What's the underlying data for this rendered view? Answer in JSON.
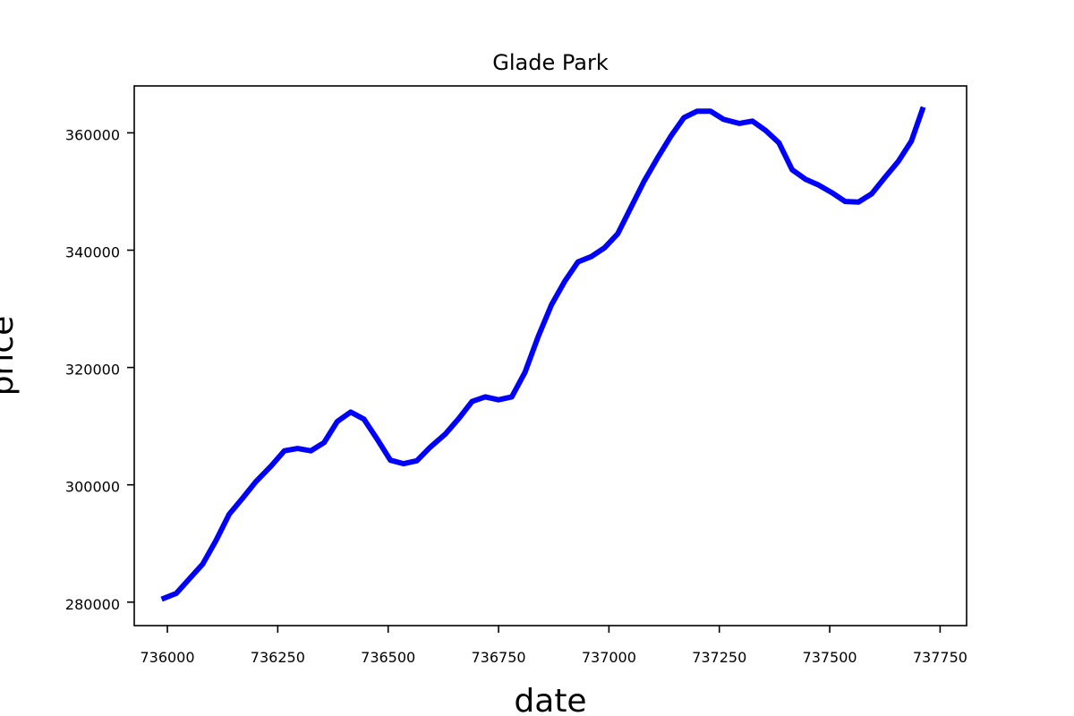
{
  "chart_data": {
    "type": "line",
    "title": "Glade Park",
    "xlabel": "date",
    "ylabel": "price",
    "xlim": [
      735925,
      737810
    ],
    "ylim": [
      276000,
      368000
    ],
    "x_ticks": [
      736000,
      736250,
      736500,
      736750,
      737000,
      737250,
      737500,
      737750
    ],
    "x_tick_labels": [
      "736000",
      "736250",
      "736500",
      "736750",
      "737000",
      "737250",
      "737500",
      "737750"
    ],
    "y_ticks": [
      280000,
      300000,
      320000,
      340000,
      360000
    ],
    "y_tick_labels": [
      "280000",
      "300000",
      "320000",
      "340000",
      "360000"
    ],
    "grid": false,
    "series": [
      {
        "color": "#0000ff",
        "x": [
          735987,
          736020,
          736050,
          736080,
          736110,
          736140,
          736170,
          736200,
          736235,
          736265,
          736295,
          736325,
          736355,
          736385,
          736415,
          736445,
          736475,
          736505,
          736535,
          736565,
          736595,
          736630,
          736660,
          736690,
          736720,
          736750,
          736780,
          736810,
          736840,
          736870,
          736900,
          736930,
          736960,
          736990,
          737020,
          737050,
          737080,
          737110,
          737140,
          737170,
          737200,
          737230,
          737260,
          737295,
          737325,
          737355,
          737385,
          737415,
          737445,
          737475,
          737505,
          737535,
          737565,
          737595,
          737625,
          737655,
          737685,
          737712
        ],
        "y": [
          280500,
          281500,
          284000,
          286500,
          290500,
          295000,
          297700,
          300500,
          303200,
          305800,
          306200,
          305800,
          307200,
          310800,
          312400,
          311200,
          307800,
          304200,
          303600,
          304100,
          306400,
          308700,
          311300,
          314200,
          315000,
          314500,
          315000,
          319200,
          325300,
          330700,
          334700,
          338000,
          338900,
          340400,
          342800,
          347300,
          351800,
          355700,
          359400,
          362600,
          363700,
          363700,
          362300,
          361600,
          362000,
          360400,
          358300,
          353700,
          352100,
          351100,
          349800,
          348300,
          348200,
          349600,
          352400,
          355100,
          358600,
          364400
        ]
      }
    ]
  }
}
